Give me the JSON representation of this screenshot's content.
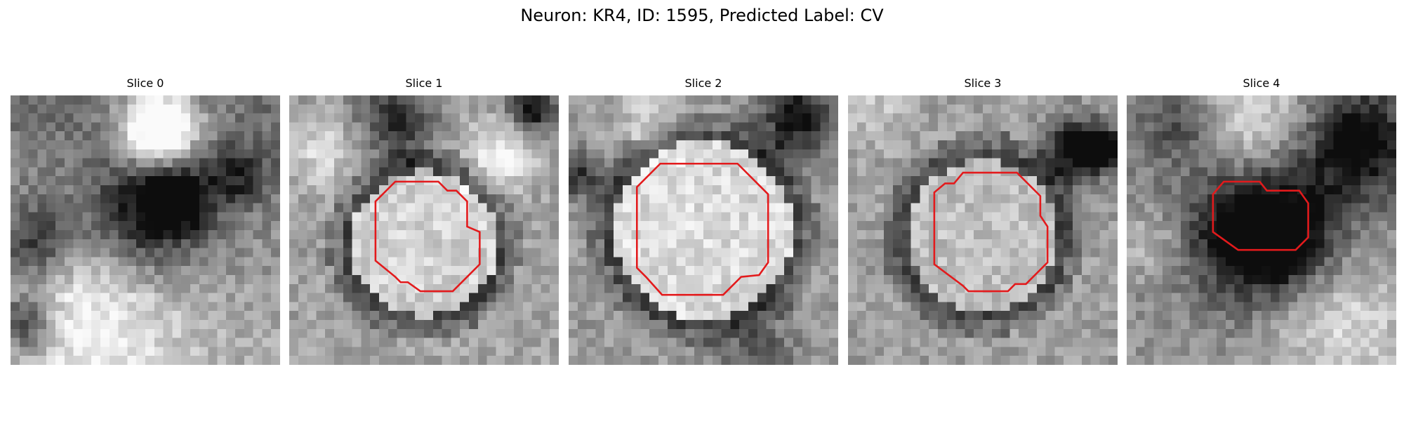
{
  "figure": {
    "title": "Neuron: KR4, ID: 1595, Predicted Label: CV",
    "contour_color": "#e31a1c",
    "panels": [
      {
        "label": "Slice 0",
        "image": "grayscale-em-tile",
        "roi": "none"
      },
      {
        "label": "Slice 1",
        "image": "grayscale-em-tile",
        "roi": "red-contour"
      },
      {
        "label": "Slice 2",
        "image": "grayscale-em-tile",
        "roi": "red-contour"
      },
      {
        "label": "Slice 3",
        "image": "grayscale-em-tile",
        "roi": "red-contour"
      },
      {
        "label": "Slice 4",
        "image": "grayscale-em-tile",
        "roi": "red-contour"
      }
    ]
  }
}
